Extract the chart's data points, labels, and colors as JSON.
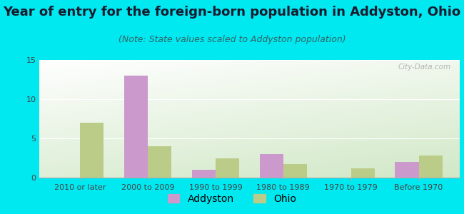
{
  "title": "Year of entry for the foreign-born population in Addyston, Ohio",
  "subtitle": "(Note: State values scaled to Addyston population)",
  "categories": [
    "2010 or later",
    "2000 to 2009",
    "1990 to 1999",
    "1980 to 1989",
    "1970 to 1979",
    "Before 1970"
  ],
  "addyston_values": [
    0,
    13,
    1,
    3,
    0,
    2
  ],
  "ohio_values": [
    7,
    4,
    2.5,
    1.7,
    1.2,
    2.8
  ],
  "addyston_color": "#cc99cc",
  "ohio_color": "#bbcc88",
  "ylim": [
    0,
    15
  ],
  "yticks": [
    0,
    5,
    10,
    15
  ],
  "background_outer": "#00e8f0",
  "title_fontsize": 13,
  "subtitle_fontsize": 9,
  "tick_fontsize": 8,
  "legend_fontsize": 10,
  "bar_width": 0.35,
  "watermark_text": "City-Data.com"
}
